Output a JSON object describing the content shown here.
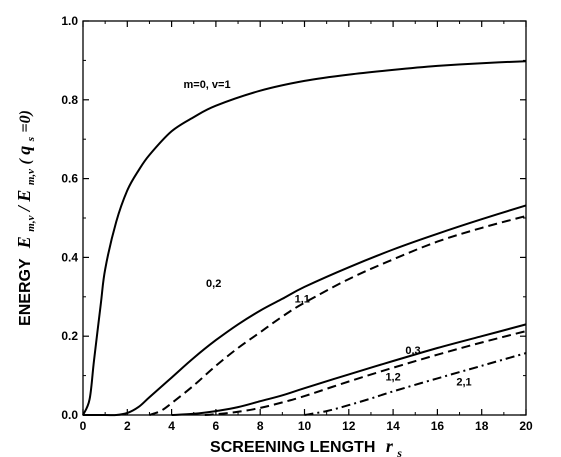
{
  "chart_data": {
    "type": "line",
    "xlabel": "SCREENING LENGTH",
    "xlabel_symbol": "r",
    "xlabel_subscript": "s",
    "ylabel": "ENERGY",
    "ylabel_symbol": "E",
    "ylabel_sub1": "m,ν",
    "ylabel_slash": "/",
    "ylabel_sym2": "E",
    "ylabel_sub2": "m,ν",
    "ylabel_paren_open": "(",
    "ylabel_q": "q",
    "ylabel_q_sub": "s",
    "ylabel_eq": "=0)",
    "xlim": [
      0,
      20
    ],
    "ylim": [
      0,
      1.0
    ],
    "x_ticks": [
      "0",
      "2",
      "4",
      "6",
      "8",
      "10",
      "12",
      "14",
      "16",
      "18",
      "20"
    ],
    "y_ticks": [
      "0.0",
      "0.2",
      "0.4",
      "0.6",
      "0.8",
      "1.0"
    ],
    "series": [
      {
        "name": "m=0, ν=1",
        "style": "solid",
        "x": [
          0,
          0.3,
          0.5,
          0.8,
          1.0,
          1.5,
          2.0,
          2.5,
          3.0,
          4.0,
          5.0,
          6.0,
          8.0,
          10.0,
          12.0,
          14.0,
          16.0,
          18.0,
          20.0
        ],
        "y": [
          0,
          0.04,
          0.14,
          0.28,
          0.37,
          0.49,
          0.57,
          0.62,
          0.66,
          0.72,
          0.756,
          0.785,
          0.823,
          0.848,
          0.864,
          0.876,
          0.886,
          0.893,
          0.898
        ]
      },
      {
        "name": "0,2",
        "style": "solid",
        "x": [
          0,
          1.0,
          1.5,
          2.0,
          2.5,
          3.0,
          4.0,
          5.0,
          6.0,
          7.0,
          8.0,
          9.0,
          10.0,
          12.0,
          14.0,
          16.0,
          18.0,
          20.0
        ],
        "y": [
          0,
          0,
          0,
          0.005,
          0.02,
          0.045,
          0.095,
          0.145,
          0.19,
          0.23,
          0.265,
          0.295,
          0.325,
          0.375,
          0.42,
          0.46,
          0.497,
          0.532
        ]
      },
      {
        "name": "1,1",
        "style": "dashed",
        "x": [
          3.0,
          3.5,
          4.0,
          5.0,
          6.0,
          7.0,
          8.0,
          9.0,
          10.0,
          12.0,
          14.0,
          16.0,
          18.0,
          20.0
        ],
        "y": [
          0,
          0.01,
          0.03,
          0.075,
          0.125,
          0.17,
          0.21,
          0.25,
          0.285,
          0.345,
          0.395,
          0.44,
          0.475,
          0.505
        ]
      },
      {
        "name": "0,3",
        "style": "solid",
        "x": [
          4.0,
          5.0,
          6.0,
          7.0,
          8.0,
          9.0,
          10.0,
          12.0,
          14.0,
          16.0,
          18.0,
          20.0
        ],
        "y": [
          0,
          0.003,
          0.01,
          0.02,
          0.035,
          0.05,
          0.068,
          0.103,
          0.137,
          0.17,
          0.2,
          0.23
        ]
      },
      {
        "name": "1,2",
        "style": "dashed",
        "x": [
          5.5,
          6.0,
          7.0,
          8.0,
          9.0,
          10.0,
          12.0,
          14.0,
          16.0,
          18.0,
          20.0
        ],
        "y": [
          0,
          0.002,
          0.008,
          0.018,
          0.032,
          0.048,
          0.085,
          0.12,
          0.153,
          0.184,
          0.213
        ]
      },
      {
        "name": "2,1",
        "style": "dashdot",
        "x": [
          10.0,
          11.0,
          12.0,
          13.0,
          14.0,
          16.0,
          18.0,
          20.0
        ],
        "y": [
          0,
          0.01,
          0.025,
          0.042,
          0.06,
          0.093,
          0.125,
          0.157
        ]
      }
    ],
    "curve_labels": [
      {
        "text": "m=0, v=1",
        "x": 5.6,
        "y": 0.83
      },
      {
        "text": "0,2",
        "x": 5.9,
        "y": 0.325
      },
      {
        "text": "1,1",
        "x": 9.9,
        "y": 0.285
      },
      {
        "text": "0,3",
        "x": 14.9,
        "y": 0.155
      },
      {
        "text": "1,2",
        "x": 14.0,
        "y": 0.088
      },
      {
        "text": "2,1",
        "x": 17.2,
        "y": 0.075
      }
    ]
  }
}
